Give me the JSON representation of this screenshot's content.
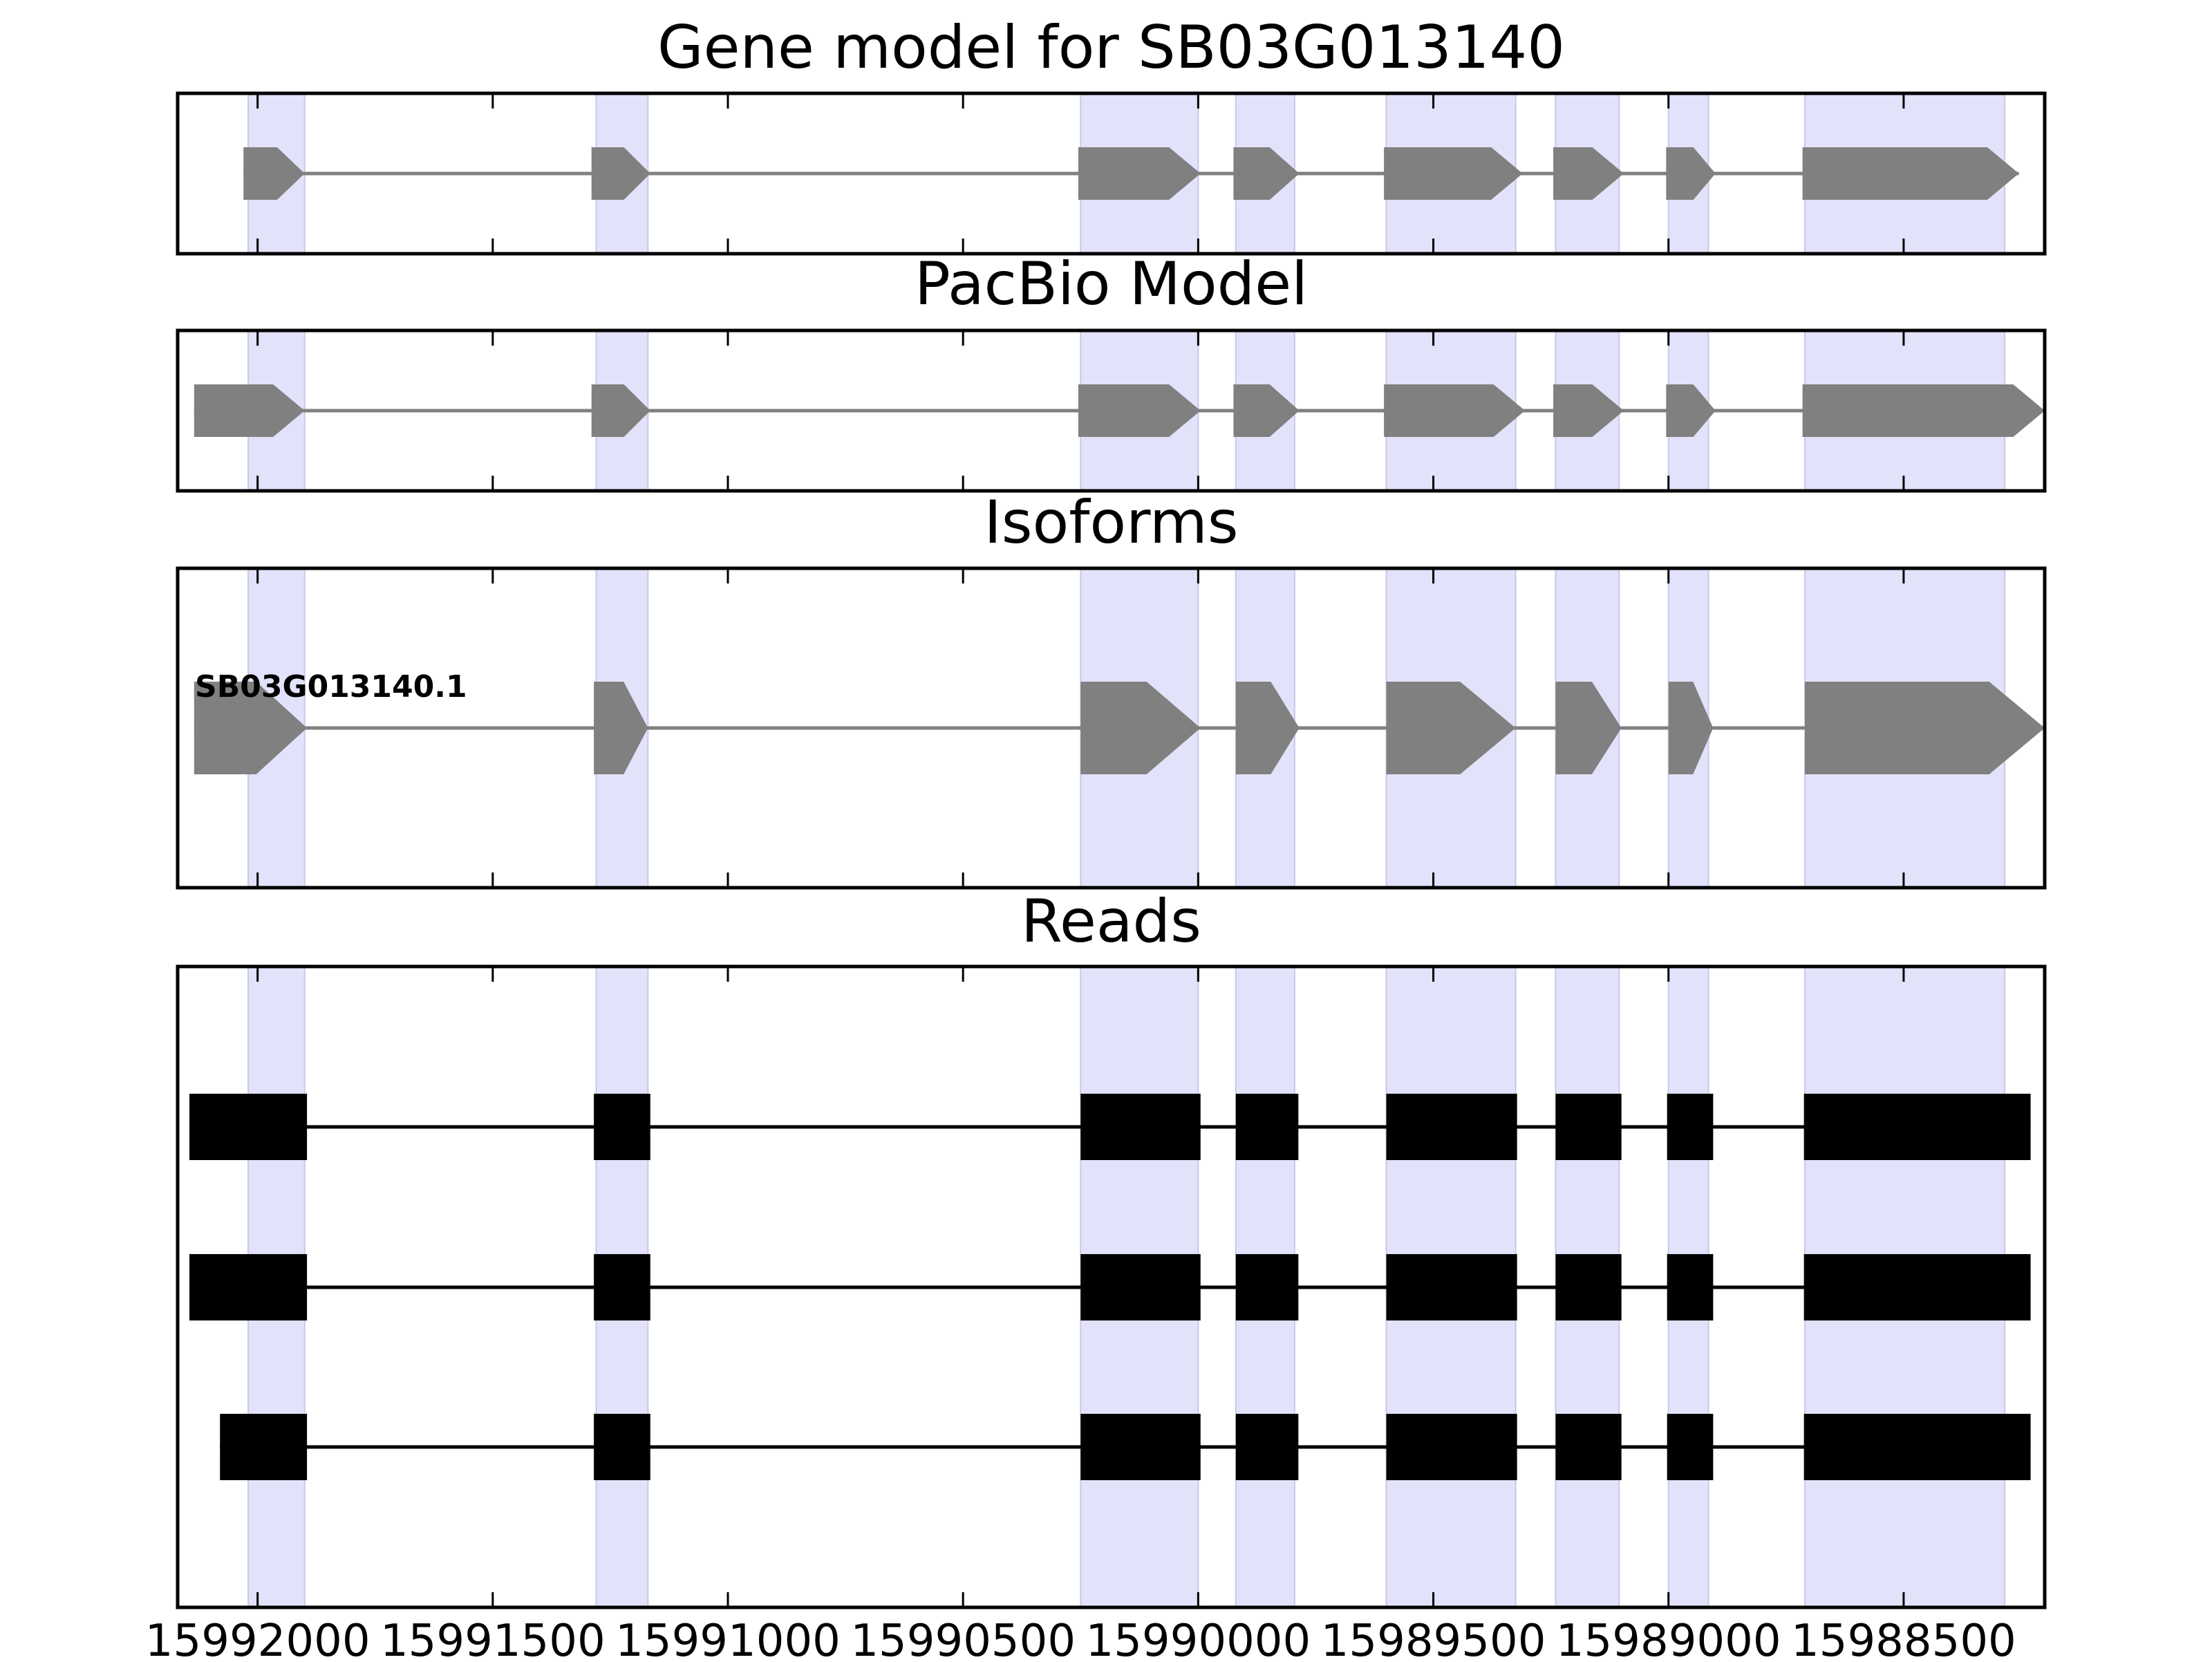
{
  "chart_data": {
    "type": "gene-track",
    "axis": {
      "xlim": [
        15992170,
        15988200
      ],
      "inverted": true,
      "ticks": [
        15992000,
        15991500,
        15991000,
        15990500,
        15990000,
        15989500,
        15989000,
        15988500
      ],
      "tick_labels": [
        "15992000",
        "15991500",
        "15991000",
        "15990500",
        "15990000",
        "15989500",
        "15989000",
        "15988500"
      ]
    },
    "colors": {
      "highlight": "#e2e2fa",
      "gene_feature": "#808080",
      "read": "#000000",
      "frame": "#000000"
    },
    "highlight_regions": [
      [
        15992020,
        15991900
      ],
      [
        15991280,
        15991170
      ],
      [
        15990250,
        15990000
      ],
      [
        15989920,
        15989795
      ],
      [
        15989600,
        15989325
      ],
      [
        15989240,
        15989105
      ],
      [
        15989000,
        15988915
      ],
      [
        15988710,
        15988285
      ]
    ],
    "panels": [
      {
        "title": "Gene model for SB03G013140",
        "kind": "arrows",
        "tracks": [
          {
            "label": "",
            "exons": [
              [
                15992030,
                15991900
              ],
              [
                15991290,
                15991165
              ],
              [
                15990255,
                15989995
              ],
              [
                15989925,
                15989785
              ],
              [
                15989605,
                15989310
              ],
              [
                15989245,
                15989095
              ],
              [
                15989005,
                15988900
              ],
              [
                15988715,
                15988255
              ]
            ]
          }
        ]
      },
      {
        "title": "PacBio Model",
        "kind": "arrows",
        "tracks": [
          {
            "label": "",
            "exons": [
              [
                15992135,
                15991900
              ],
              [
                15991290,
                15991165
              ],
              [
                15990255,
                15989995
              ],
              [
                15989925,
                15989785
              ],
              [
                15989605,
                15989305
              ],
              [
                15989245,
                15989095
              ],
              [
                15989005,
                15988900
              ],
              [
                15988715,
                15988200
              ]
            ]
          }
        ]
      },
      {
        "title": "Isoforms",
        "kind": "arrows",
        "tracks": [
          {
            "label": "SB03G013140.1",
            "exons": [
              [
                15992135,
                15991895
              ],
              [
                15991285,
                15991170
              ],
              [
                15990250,
                15989995
              ],
              [
                15989920,
                15989785
              ],
              [
                15989600,
                15989325
              ],
              [
                15989240,
                15989100
              ],
              [
                15989000,
                15988905
              ],
              [
                15988710,
                15988200
              ]
            ]
          }
        ]
      },
      {
        "title": "Reads",
        "kind": "blocks",
        "tracks": [
          {
            "label": "",
            "exons": [
              [
                15992145,
                15991895
              ],
              [
                15991285,
                15991165
              ],
              [
                15990250,
                15989995
              ],
              [
                15989920,
                15989787
              ],
              [
                15989600,
                15989322
              ],
              [
                15989240,
                15989100
              ],
              [
                15989003,
                15988905
              ],
              [
                15988712,
                15988230
              ]
            ]
          },
          {
            "label": "",
            "exons": [
              [
                15992145,
                15991895
              ],
              [
                15991285,
                15991165
              ],
              [
                15990250,
                15989995
              ],
              [
                15989920,
                15989787
              ],
              [
                15989600,
                15989322
              ],
              [
                15989240,
                15989100
              ],
              [
                15989003,
                15988905
              ],
              [
                15988712,
                15988230
              ]
            ]
          },
          {
            "label": "",
            "exons": [
              [
                15992080,
                15991895
              ],
              [
                15991285,
                15991165
              ],
              [
                15990250,
                15989995
              ],
              [
                15989920,
                15989787
              ],
              [
                15989600,
                15989322
              ],
              [
                15989240,
                15989100
              ],
              [
                15989003,
                15988905
              ],
              [
                15988712,
                15988230
              ]
            ]
          }
        ]
      }
    ]
  }
}
